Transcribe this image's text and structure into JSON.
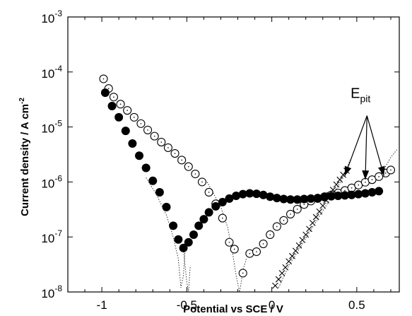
{
  "chart_data": {
    "type": "scatter",
    "title": "",
    "xlabel": "Potential vs SCE / V",
    "ylabel": "Current density / A cm",
    "ylabel_sup": "-2",
    "x_scale": "linear",
    "y_scale": "log",
    "xlim": [
      -1.2,
      0.75
    ],
    "ylim": [
      1e-08,
      0.001
    ],
    "xticks": [
      -1,
      -0.5,
      0,
      0.5
    ],
    "xtick_labels": [
      "-1",
      "-0.5",
      "0",
      "0.5"
    ],
    "yticks": [
      1e-08,
      1e-07,
      1e-06,
      1e-05,
      0.0001,
      0.001
    ],
    "ytick_labels": [
      {
        "base": "10",
        "exp": "-8"
      },
      {
        "base": "10",
        "exp": "-7"
      },
      {
        "base": "10",
        "exp": "-6"
      },
      {
        "base": "10",
        "exp": "-5"
      },
      {
        "base": "10",
        "exp": "-4"
      },
      {
        "base": "10",
        "exp": "-3"
      }
    ],
    "grid": false,
    "legend": null,
    "annotation": {
      "text": "E",
      "subscript": "pit",
      "text_at": [
        0.58,
        3.4e-05
      ],
      "arrow_origin": [
        0.56,
        1.6e-05
      ],
      "arrow_targets": [
        [
          0.43,
          1.3e-06
        ],
        [
          0.55,
          1.1e-06
        ],
        [
          0.66,
          1.3e-06
        ]
      ]
    },
    "series": [
      {
        "marker": "open-circle",
        "x": [
          -0.99,
          -0.96,
          -0.93,
          -0.89,
          -0.85,
          -0.81,
          -0.77,
          -0.73,
          -0.69,
          -0.65,
          -0.61,
          -0.57,
          -0.53,
          -0.49,
          -0.45,
          -0.41,
          -0.37,
          -0.33,
          -0.29,
          -0.25,
          -0.22,
          -0.17,
          -0.13,
          -0.09,
          -0.05,
          -0.01,
          0.03,
          0.07,
          0.11,
          0.15,
          0.19,
          0.23,
          0.27,
          0.31,
          0.35,
          0.39,
          0.43,
          0.47,
          0.51,
          0.55,
          0.59,
          0.63,
          0.67,
          0.7
        ],
        "y": [
          7.5e-05,
          5e-05,
          3.5e-05,
          2.6e-05,
          2e-05,
          1.5e-05,
          1.15e-05,
          8.8e-06,
          6.8e-06,
          5.3e-06,
          4.2e-06,
          3.3e-06,
          2.5e-06,
          1.9e-06,
          1.4e-06,
          1e-06,
          6.5e-07,
          4e-07,
          2.2e-07,
          8e-08,
          6e-08,
          2.2e-08,
          5e-08,
          5.4e-08,
          7.5e-08,
          1.1e-07,
          1.55e-07,
          2e-07,
          2.6e-07,
          3.2e-07,
          3.9e-07,
          4.5e-07,
          5e-07,
          5.4e-07,
          5.8e-07,
          6.3e-07,
          7e-07,
          7.8e-07,
          8.8e-07,
          9.9e-07,
          1.1e-06,
          1.25e-06,
          1.45e-06,
          1.65e-06
        ]
      },
      {
        "marker": "filled-circle",
        "x": [
          -0.98,
          -0.94,
          -0.9,
          -0.86,
          -0.82,
          -0.78,
          -0.74,
          -0.7,
          -0.66,
          -0.62,
          -0.58,
          -0.55,
          -0.52,
          -0.49,
          -0.46,
          -0.43,
          -0.4,
          -0.37,
          -0.33,
          -0.29,
          -0.25,
          -0.21,
          -0.17,
          -0.13,
          -0.09,
          -0.05,
          -0.01,
          0.03,
          0.07,
          0.11,
          0.15,
          0.19,
          0.23,
          0.27,
          0.31,
          0.35,
          0.39,
          0.43,
          0.47,
          0.51,
          0.55,
          0.59,
          0.63
        ],
        "y": [
          4.2e-05,
          2.4e-05,
          1.5e-05,
          8.5e-06,
          5e-06,
          3e-06,
          1.8e-06,
          1.05e-06,
          6.5e-07,
          3.5e-07,
          1.6e-07,
          9e-08,
          6.3e-08,
          8e-08,
          1.1e-07,
          1.6e-07,
          2.1e-07,
          2.8e-07,
          3.6e-07,
          4.3e-07,
          5e-07,
          5.6e-07,
          6e-07,
          6.2e-07,
          6.1e-07,
          5.8e-07,
          5.4e-07,
          5.1e-07,
          4.9e-07,
          4.8e-07,
          4.8e-07,
          4.9e-07,
          5e-07,
          5.1e-07,
          5.3e-07,
          5.5e-07,
          5.6e-07,
          5.7e-07,
          5.8e-07,
          6e-07,
          6.2e-07,
          6.5e-07,
          6.8e-07
        ]
      },
      {
        "marker": "cross",
        "x": [
          0.02,
          0.04,
          0.06,
          0.08,
          0.1,
          0.12,
          0.14,
          0.16,
          0.18,
          0.2,
          0.22,
          0.24,
          0.26,
          0.28,
          0.3,
          0.32,
          0.34,
          0.36,
          0.38,
          0.4,
          0.42,
          0.44
        ],
        "y": [
          1.3e-08,
          1.7e-08,
          2.2e-08,
          2.8e-08,
          3.6e-08,
          4.5e-08,
          5.6e-08,
          7e-08,
          8.8e-08,
          1.1e-07,
          1.4e-07,
          1.8e-07,
          2.3e-07,
          2.9e-07,
          3.7e-07,
          4.6e-07,
          5.8e-07,
          7.2e-07,
          9e-07,
          1.1e-06,
          1.35e-06,
          1.6e-06
        ]
      }
    ],
    "dotted_traces": [
      {
        "x": [
          -0.74,
          -0.68,
          -0.62,
          -0.58,
          -0.55,
          -0.535,
          -0.52,
          -0.51
        ],
        "y": [
          1.2e-06,
          6e-07,
          2.5e-07,
          1e-07,
          4e-08,
          1.2e-08,
          2e-08,
          6e-08
        ]
      },
      {
        "x": [
          -0.52,
          -0.5,
          -0.49,
          -0.48
        ],
        "y": [
          6e-08,
          1.5e-08,
          1e-08,
          3e-08
        ]
      },
      {
        "x": [
          -0.38,
          -0.3,
          -0.26,
          -0.23,
          -0.21,
          -0.19,
          -0.18,
          -0.17,
          -0.15
        ],
        "y": [
          1e-06,
          3.5e-07,
          1.5e-07,
          5e-08,
          2e-08,
          1e-08,
          1.5e-08,
          2.5e-08,
          4e-08
        ]
      },
      {
        "x": [
          0.04,
          0.1,
          0.18,
          0.26,
          0.34,
          0.42,
          0.46
        ],
        "y": [
          1.2e-08,
          3e-08,
          7.5e-08,
          1.9e-07,
          4.7e-07,
          1.2e-06,
          2.5e-06
        ]
      },
      {
        "x": [
          0.6,
          0.66,
          0.7,
          0.74
        ],
        "y": [
          1.1e-06,
          1.7e-06,
          2.8e-06,
          4e-06
        ]
      }
    ]
  }
}
